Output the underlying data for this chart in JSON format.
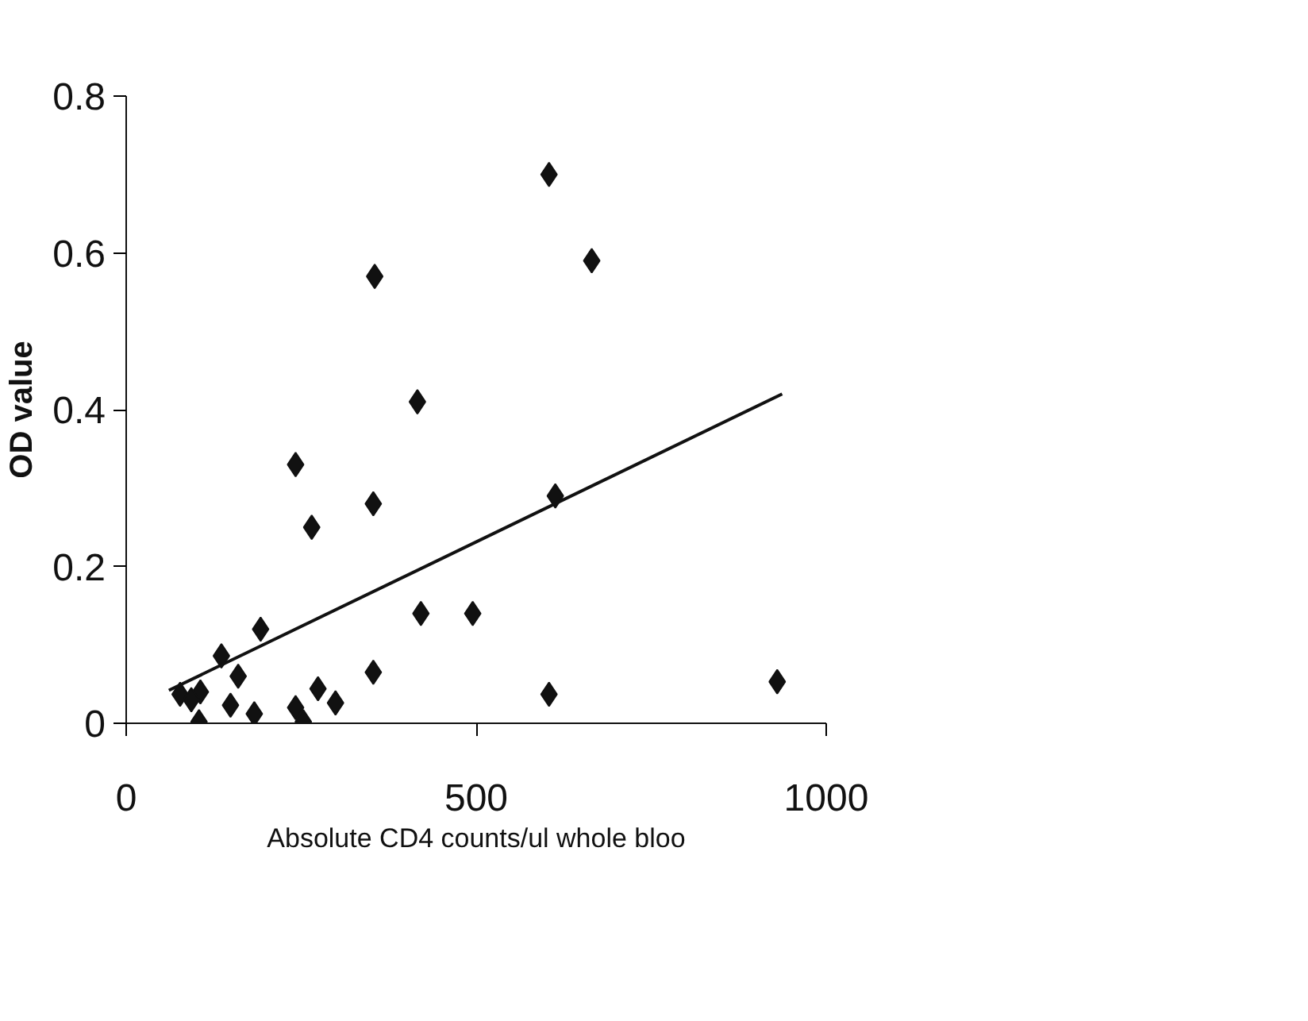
{
  "chart_data": {
    "type": "scatter",
    "xlabel": "Absolute CD4 counts/ul whole bloo",
    "ylabel": "OD value",
    "xlim": [
      0,
      1000
    ],
    "ylim": [
      0,
      0.8
    ],
    "xticks": [
      0,
      500,
      1000
    ],
    "yticks": [
      0,
      0.2,
      0.4,
      0.6,
      0.8
    ],
    "grid": false,
    "marker": "diamond",
    "series": [
      {
        "color": "#111111",
        "x": [
          604,
          665,
          613,
          604,
          930,
          416,
          242,
          353,
          265,
          421,
          495,
          192,
          136,
          160,
          77,
          106,
          104,
          149,
          183,
          242,
          253,
          274,
          299,
          353,
          355,
          93
        ],
        "values": [
          0.7,
          0.59,
          0.29,
          0.037,
          0.053,
          0.41,
          0.33,
          0.28,
          0.25,
          0.14,
          0.14,
          0.12,
          0.086,
          0.06,
          0.037,
          0.04,
          0.002,
          0.023,
          0.012,
          0.02,
          0.002,
          0.044,
          0.026,
          0.065,
          0.57,
          0.03
        ]
      },
      {
        "type": "line",
        "color": "#111111",
        "marker": "none",
        "x": [
          61,
          937
        ],
        "values": [
          0.042,
          0.42
        ]
      }
    ]
  }
}
